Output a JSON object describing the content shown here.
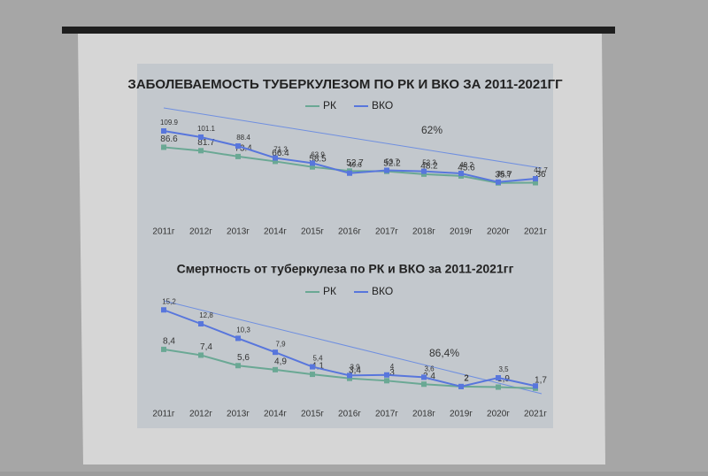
{
  "chart_data": [
    {
      "type": "line",
      "title": "ЗАБОЛЕВАЕМОСТЬ ТУБЕРКУЛЕЗОМ ПО РК И ВКО ЗА 2011-2021ГГ",
      "annotation": "62%",
      "categories": [
        "2011г",
        "2012г",
        "2013г",
        "2014г",
        "2015г",
        "2016г",
        "2017г",
        "2018г",
        "2019г",
        "2020г",
        "2021г"
      ],
      "series": [
        {
          "name": "РК",
          "color": "#6aa894",
          "values": [
            86.6,
            81.7,
            73.4,
            66.4,
            58.5,
            52.7,
            52.2,
            48.2,
            45.6,
            35.7,
            36
          ]
        },
        {
          "name": "ВКО",
          "color": "#5876dc",
          "values": [
            109.9,
            101.1,
            88.4,
            71.3,
            63.9,
            49.6,
            53.7,
            52.3,
            49.2,
            36.9,
            41.7
          ]
        }
      ],
      "ylim": [
        0,
        120
      ]
    },
    {
      "type": "line",
      "title": "Смертность от туберкулеза по РК и ВКО за 2011-2021гг",
      "annotation": "86,4%",
      "categories": [
        "2011г",
        "2012г",
        "2013г",
        "2014г",
        "2015г",
        "2016г",
        "2017г",
        "2018г",
        "2019г",
        "2020г",
        "2021г"
      ],
      "series": [
        {
          "name": "РК",
          "color": "#6aa894",
          "values": [
            8.4,
            7.4,
            5.6,
            4.9,
            4.1,
            3.4,
            3,
            2.4,
            2,
            1.9,
            1.7
          ],
          "value_labels": [
            "8,4",
            "7,4",
            "5,6",
            "4,9",
            "4,1",
            "3,4",
            "3",
            "2,4",
            "2",
            "1,9",
            "1,7"
          ]
        },
        {
          "name": "ВКО",
          "color": "#5876dc",
          "values": [
            15.2,
            12.8,
            10.3,
            7.9,
            5.4,
            3.9,
            4,
            3.6,
            2,
            3.5,
            2.1
          ],
          "value_labels": [
            "15,2",
            "12,8",
            "10,3",
            "7,9",
            "5,4",
            "3,9",
            "4",
            "3,6",
            "2",
            "3,5",
            null
          ]
        }
      ],
      "ylim": [
        0,
        16
      ]
    }
  ]
}
